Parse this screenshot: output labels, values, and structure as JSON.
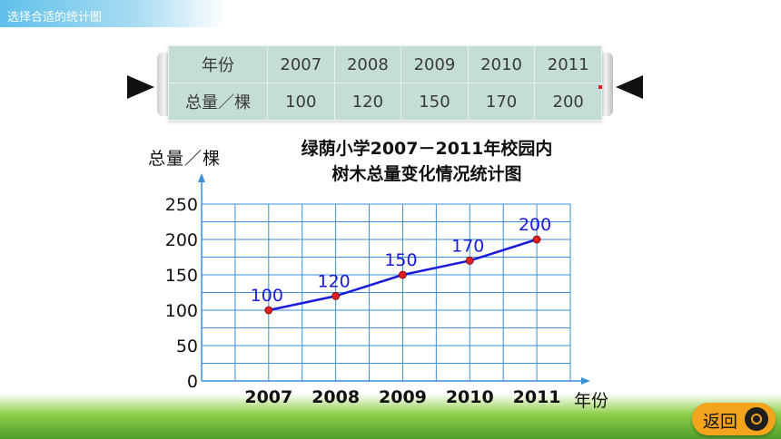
{
  "header": {
    "title": "选择合适的统计图"
  },
  "table": {
    "row1_label": "年份",
    "row2_label": "总量／棵",
    "years": [
      "2007",
      "2008",
      "2009",
      "2010",
      "2011"
    ],
    "totals": [
      "100",
      "120",
      "150",
      "170",
      "200"
    ]
  },
  "chart_data": {
    "type": "line",
    "title_line1": "绿荫小学2007－2011年校园内",
    "title_line2": "树木总量变化情况统计图",
    "ylabel": "总量／棵",
    "xlabel": "年份",
    "categories": [
      "2007",
      "2008",
      "2009",
      "2010",
      "2011"
    ],
    "values": [
      100,
      120,
      150,
      170,
      200
    ],
    "yticks": [
      "0",
      "50",
      "100",
      "150",
      "200",
      "250"
    ],
    "ylim": [
      0,
      250
    ],
    "grid": true,
    "line_color": "#1a1adb",
    "point_color": "#e02020",
    "label_color": "#1a1adb"
  },
  "nav": {
    "back_label": "返回"
  }
}
